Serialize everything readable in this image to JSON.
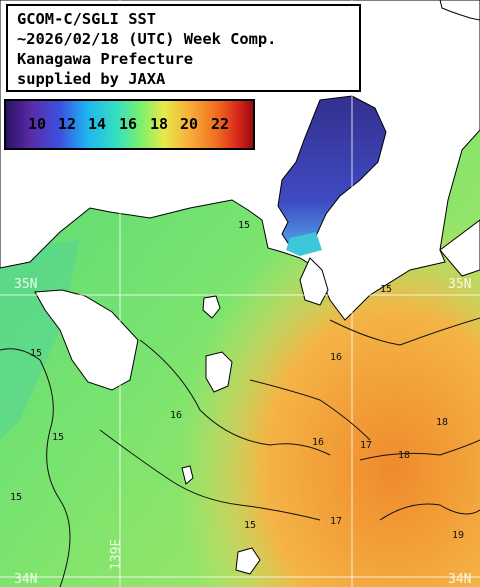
{
  "title": {
    "line1": "GCOM-C/SGLI SST",
    "line2": "~2026/02/18 (UTC) Week Comp.",
    "line3": "Kanagawa Prefecture",
    "line4": "supplied by JAXA"
  },
  "legend": {
    "ticks": [
      "10",
      "12",
      "14",
      "16",
      "18",
      "20",
      "22"
    ],
    "colors": [
      "#3a1e7e",
      "#4444cc",
      "#18b8f0",
      "#5fe08a",
      "#e8e94a",
      "#f39022",
      "#d81a1a"
    ]
  },
  "lat_labels": [
    "35N",
    "34N"
  ],
  "lon_labels": [
    "139E"
  ],
  "contour_labels": [
    "15",
    "15",
    "15",
    "15",
    "15",
    "15",
    "16",
    "16",
    "16",
    "17",
    "17",
    "18",
    "18",
    "19"
  ],
  "colors": {
    "land": "#ffffff",
    "sea_green": "#6fe675",
    "sea_cool": "#3ec7b8",
    "bay": "#3a3fb5",
    "warm": "#f4a43a"
  }
}
